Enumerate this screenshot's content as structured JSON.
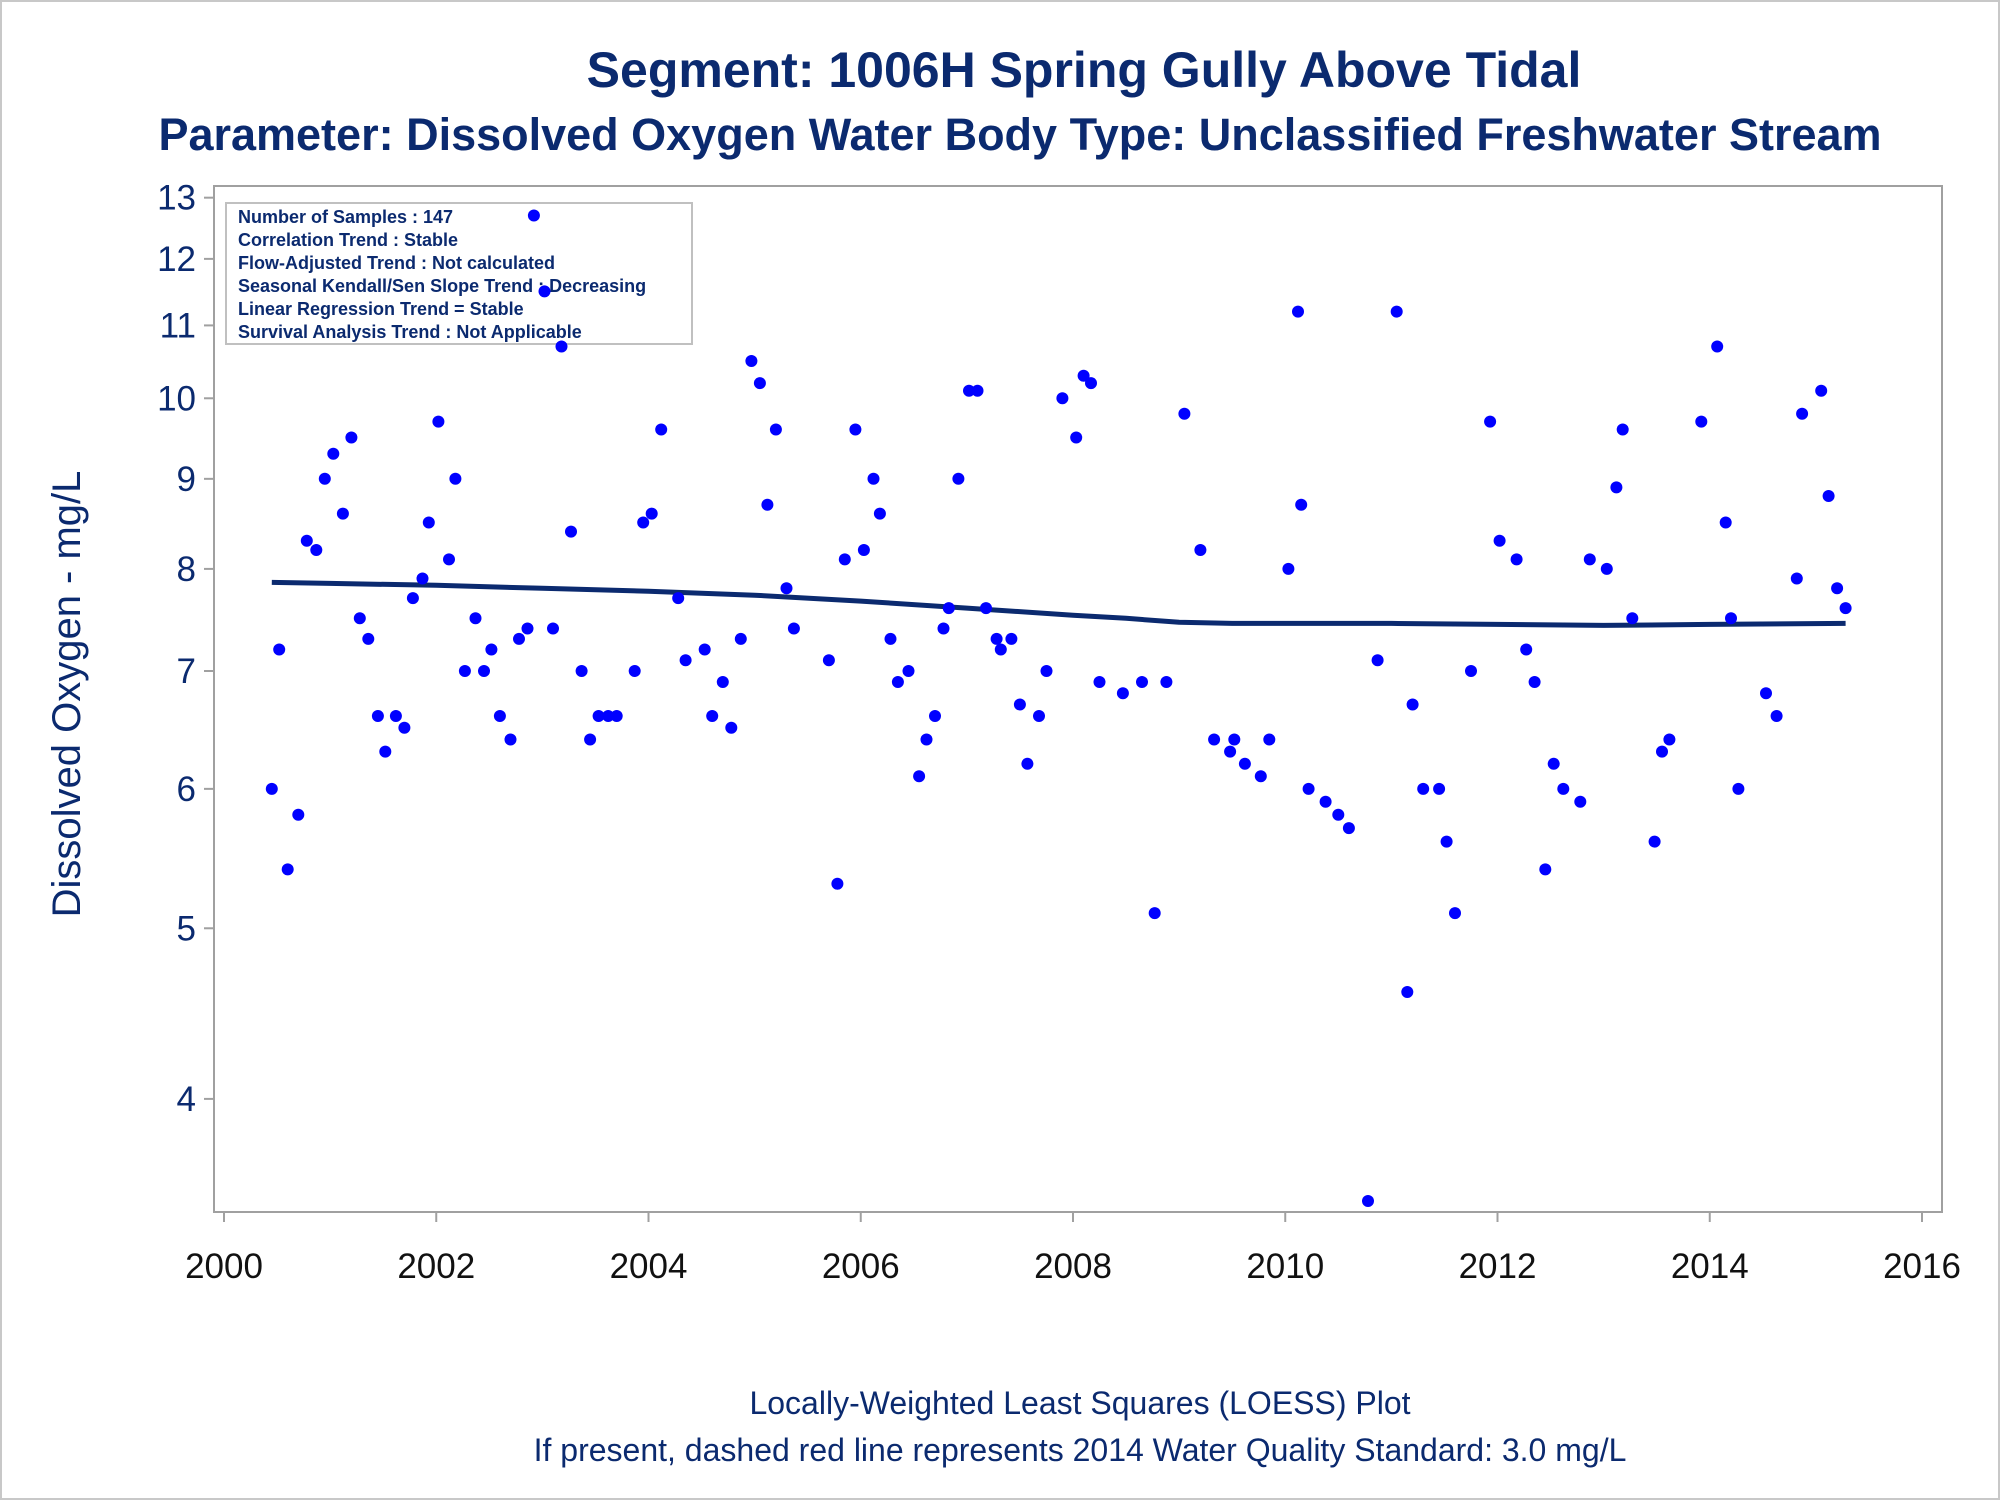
{
  "chart_data": {
    "type": "scatter",
    "title": "Segment: 1006H  Spring Gully Above Tidal",
    "subtitle": "Parameter: Dissolved Oxygen   Water Body Type: Unclassified Freshwater Stream",
    "xlabel": "",
    "ylabel": "Dissolved Oxygen - mg/L",
    "footnotes": [
      "Locally-Weighted Least Squares (LOESS) Plot",
      "If present, dashed red line represents 2014 Water Quality Standard: 3.0 mg/L"
    ],
    "stats_box": [
      "Number of Samples : 147",
      "Correlation Trend : Stable",
      "Flow-Adjusted Trend : Not calculated",
      "Seasonal Kendall/Sen Slope Trend : Decreasing",
      "Linear Regression Trend = Stable",
      "Survival Analysis Trend : Not Applicable"
    ],
    "xlim": [
      2000,
      2016
    ],
    "xticks": [
      2000,
      2002,
      2004,
      2006,
      2008,
      2010,
      2012,
      2014,
      2016
    ],
    "ylim": [
      3.45,
      13.2
    ],
    "yscale": "log",
    "yticks": [
      4,
      5,
      6,
      7,
      8,
      9,
      10,
      11,
      12,
      13
    ],
    "grid": false,
    "colors": {
      "points": "#0000ff",
      "loess_line": "#0b2a6f",
      "text": "#0b2a6f",
      "frame": "#a0a0a0"
    },
    "series": [
      {
        "type": "scatter",
        "x": [
          2000.45,
          2000.52,
          2000.6,
          2000.7,
          2000.78,
          2000.87,
          2000.95,
          2001.03,
          2001.12,
          2001.2,
          2001.28,
          2001.36,
          2001.45,
          2001.52,
          2001.62,
          2001.7,
          2001.78,
          2001.87,
          2001.93,
          2002.02,
          2002.12,
          2002.18,
          2002.27,
          2002.37,
          2002.45,
          2002.52,
          2002.6,
          2002.7,
          2002.78,
          2002.86,
          2002.92,
          2003.02,
          2003.1,
          2003.18,
          2003.27,
          2003.37,
          2003.45,
          2003.53,
          2003.62,
          2003.7,
          2003.87,
          2003.95,
          2004.03,
          2004.12,
          2004.28,
          2004.35,
          2004.53,
          2004.6,
          2004.7,
          2004.78,
          2004.87,
          2004.97,
          2005.05,
          2005.12,
          2005.2,
          2005.3,
          2005.37,
          2005.7,
          2005.78,
          2005.85,
          2005.95,
          2006.03,
          2006.12,
          2006.18,
          2006.28,
          2006.35,
          2006.45,
          2006.55,
          2006.62,
          2006.7,
          2006.78,
          2006.83,
          2006.92,
          2007.02,
          2007.1,
          2007.18,
          2007.28,
          2007.32,
          2007.42,
          2007.5,
          2007.57,
          2007.68,
          2007.75,
          2007.9,
          2008.03,
          2008.1,
          2008.17,
          2008.25,
          2008.47,
          2008.65,
          2008.77,
          2008.88,
          2009.05,
          2009.2,
          2009.33,
          2009.48,
          2009.52,
          2009.62,
          2009.77,
          2009.85,
          2010.03,
          2010.12,
          2010.15,
          2010.22,
          2010.38,
          2010.5,
          2010.6,
          2010.78,
          2010.87,
          2011.05,
          2011.15,
          2011.2,
          2011.3,
          2011.45,
          2011.52,
          2011.6,
          2011.75,
          2011.93,
          2012.02,
          2012.18,
          2012.27,
          2012.35,
          2012.45,
          2012.53,
          2012.62,
          2012.78,
          2012.87,
          2013.03,
          2013.12,
          2013.18,
          2013.27,
          2013.48,
          2013.55,
          2013.62,
          2013.92,
          2014.07,
          2014.15,
          2014.2,
          2014.27,
          2014.53,
          2014.63,
          2014.82,
          2014.87,
          2015.05,
          2015.12,
          2015.2,
          2015.28
        ],
        "values": [
          6.0,
          7.2,
          5.4,
          5.8,
          8.3,
          8.2,
          9.0,
          9.3,
          8.6,
          9.5,
          7.5,
          7.3,
          6.6,
          6.3,
          6.6,
          6.5,
          7.7,
          7.9,
          8.5,
          9.7,
          8.1,
          9.0,
          7.0,
          7.5,
          7.0,
          7.2,
          6.6,
          6.4,
          7.3,
          7.4,
          12.7,
          11.5,
          7.4,
          10.7,
          8.4,
          7.0,
          6.4,
          6.6,
          6.6,
          6.6,
          7.0,
          8.5,
          8.6,
          9.6,
          7.7,
          7.1,
          7.2,
          6.6,
          6.9,
          6.5,
          7.3,
          10.5,
          10.2,
          8.7,
          9.6,
          7.8,
          7.4,
          7.1,
          5.3,
          8.1,
          9.6,
          8.2,
          9.0,
          8.6,
          7.3,
          6.9,
          7.0,
          6.1,
          6.4,
          6.6,
          7.4,
          7.6,
          9.0,
          10.1,
          10.1,
          7.6,
          7.3,
          7.2,
          7.3,
          6.7,
          6.2,
          6.6,
          7.0,
          10.0,
          9.5,
          10.3,
          10.2,
          6.9,
          6.8,
          6.9,
          5.1,
          6.9,
          9.8,
          8.2,
          6.4,
          6.3,
          6.4,
          6.2,
          6.1,
          6.4,
          8.0,
          11.2,
          8.7,
          6.0,
          5.9,
          5.8,
          5.7,
          3.5,
          7.1,
          11.2,
          4.6,
          6.7,
          6.0,
          6.0,
          5.6,
          5.1,
          7.0,
          9.7,
          8.3,
          8.1,
          7.2,
          6.9,
          5.4,
          6.2,
          6.0,
          5.9,
          8.1,
          8.0,
          8.9,
          9.6,
          7.5,
          5.6,
          6.3,
          6.4,
          9.7,
          10.7,
          8.5,
          7.5,
          6.0,
          6.8,
          6.6,
          7.9,
          9.8,
          10.1,
          8.8,
          7.8,
          7.6
        ]
      },
      {
        "type": "line",
        "name": "LOESS",
        "x": [
          2000.45,
          2001.0,
          2002.0,
          2003.0,
          2004.0,
          2005.0,
          2006.0,
          2007.0,
          2008.0,
          2008.5,
          2009.0,
          2009.5,
          2010.0,
          2011.0,
          2012.0,
          2013.0,
          2014.0,
          2015.28
        ],
        "values": [
          7.86,
          7.85,
          7.83,
          7.8,
          7.77,
          7.73,
          7.67,
          7.6,
          7.53,
          7.5,
          7.46,
          7.45,
          7.45,
          7.45,
          7.44,
          7.43,
          7.44,
          7.45
        ]
      }
    ]
  }
}
